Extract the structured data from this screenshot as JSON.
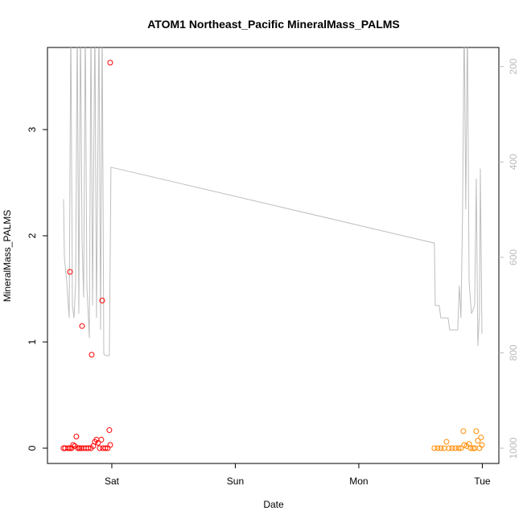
{
  "chart_data": {
    "type": "scatter",
    "title": "ATOM1 Northeast_Pacific MineralMass_PALMS",
    "x_label": "Date",
    "y_label": "MineralMass_PALMS",
    "xlim": [
      -0.521,
      3.134
    ],
    "xticks": [
      {
        "value": 0,
        "label": "Sat"
      },
      {
        "value": 1,
        "label": "Sun"
      },
      {
        "value": 2,
        "label": "Mon"
      },
      {
        "value": 3,
        "label": "Tue"
      }
    ],
    "ylim": [
      -0.144,
      3.773
    ],
    "yticks": [
      0,
      1,
      2,
      3
    ],
    "y2lim": [
      1032,
      160
    ],
    "y2ticks": [
      200,
      400,
      600,
      800,
      1000
    ],
    "series": [
      {
        "color": "#ff0000",
        "type": "scatter",
        "x": [
          -0.391,
          -0.378,
          -0.352,
          -0.339,
          -0.326,
          -0.313,
          -0.3,
          -0.287,
          -0.274,
          -0.261,
          -0.248,
          -0.228,
          -0.208,
          -0.189,
          -0.169,
          -0.15,
          -0.137,
          -0.124,
          -0.111,
          -0.098,
          -0.085,
          -0.072,
          -0.052,
          -0.033,
          -0.02,
          -0.013,
          -0.339,
          -0.241,
          -0.163,
          -0.078,
          -0.013
        ],
        "values": [
          0,
          0,
          0,
          0,
          0,
          0.03,
          0.02,
          0.11,
          0,
          0,
          0,
          0,
          0,
          0,
          0,
          0.02,
          0.06,
          0.08,
          0.05,
          0,
          0.08,
          0,
          0,
          0,
          0.17,
          0.03,
          1.66,
          1.15,
          0.88,
          1.39,
          3.63
        ]
      },
      {
        "color": "#ff8c00",
        "type": "scatter",
        "x": [
          2.612,
          2.638,
          2.664,
          2.691,
          2.71,
          2.73,
          2.756,
          2.782,
          2.808,
          2.827,
          2.847,
          2.853,
          2.873,
          2.893,
          2.906,
          2.925,
          2.938,
          2.951,
          2.964,
          2.977,
          2.99,
          2.997
        ],
        "values": [
          0,
          0,
          0,
          0,
          0.06,
          0,
          0,
          0,
          0,
          0,
          0.16,
          0.03,
          0.02,
          0.04,
          0,
          0,
          0,
          0.16,
          0.07,
          0,
          0.1,
          0.03
        ]
      },
      {
        "color": "#bebebe",
        "type": "line",
        "axis": "y2",
        "x": [
          -0.391,
          -0.384,
          -0.365,
          -0.345,
          -0.332,
          -0.319,
          -0.306,
          -0.293,
          -0.28,
          -0.267,
          -0.254,
          -0.241,
          -0.228,
          -0.215,
          -0.202,
          -0.182,
          -0.169,
          -0.156,
          -0.137,
          -0.124,
          -0.104,
          -0.091,
          -0.078,
          -0.065,
          -0.052,
          -0.033,
          -0.02,
          -0.007,
          2.612,
          2.619,
          2.651,
          2.664,
          2.723,
          2.736,
          2.801,
          2.814,
          2.827,
          2.84,
          2.853,
          2.866,
          2.879,
          2.893,
          2.912,
          2.938,
          2.951,
          2.964,
          2.977,
          2.984,
          2.997
        ],
        "values": [
          478,
          600,
          651,
          727,
          100,
          701,
          727,
          651,
          100,
          718,
          100,
          566,
          684,
          100,
          659,
          769,
          100,
          701,
          100,
          727,
          100,
          752,
          100,
          802,
          806,
          806,
          806,
          411,
          570,
          701,
          701,
          727,
          727,
          752,
          752,
          659,
          727,
          507,
          100,
          499,
          100,
          651,
          718,
          701,
          435,
          786,
          718,
          414,
          760
        ]
      }
    ]
  }
}
